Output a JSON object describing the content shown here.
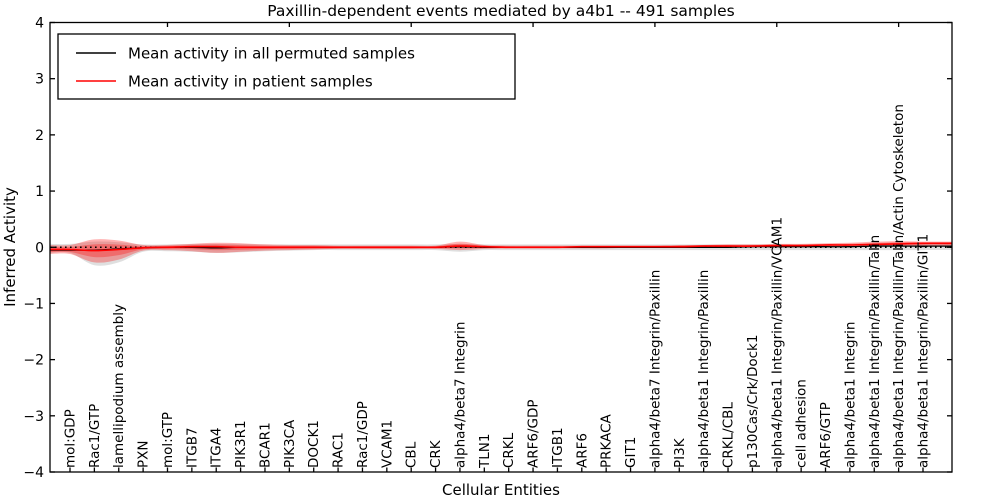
{
  "chart": {
    "title": "Paxillin-dependent events mediated by a4b1 -- 491 samples",
    "xlabel": "Cellular Entities",
    "ylabel": "Inferred Activity"
  },
  "legend": {
    "items": [
      {
        "label": "Mean activity in all permuted samples",
        "color": "#000000"
      },
      {
        "label": "Mean activity in patient samples",
        "color": "#ff0000"
      }
    ]
  },
  "chart_data": {
    "type": "line",
    "title": "Paxillin-dependent events mediated by a4b1 -- 491 samples",
    "xlabel": "Cellular Entities",
    "ylabel": "Inferred Activity",
    "ylim": [
      -4,
      4
    ],
    "yticks": [
      -4,
      -3,
      -2,
      -1,
      0,
      1,
      2,
      3,
      4
    ],
    "ytick_labels": [
      "−4",
      "−3",
      "−2",
      "−1",
      "0",
      "1",
      "2",
      "3",
      "4"
    ],
    "zero_line": {
      "y": 0,
      "style": "dotted",
      "color": "#000000"
    },
    "legend_position": "upper left",
    "grid": false,
    "categories": [
      "mol:GDP",
      "Rac1/GTP",
      "lamellipodium assembly",
      "PXN",
      "mol:GTP",
      "ITGB7",
      "ITGA4",
      "PIK3R1",
      "BCAR1",
      "PIK3CA",
      "DOCK1",
      "RAC1",
      "Rac1/GDP",
      "VCAM1",
      "CBL",
      "CRK",
      "alpha4/beta7 Integrin",
      "TLN1",
      "CRKL",
      "ARF6/GDP",
      "ITGB1",
      "ARF6",
      "PRKACA",
      "GIT1",
      "alpha4/beta7 Integrin/Paxillin",
      "PI3K",
      "alpha4/beta1 Integrin/Paxillin",
      "CRKL/CBL",
      "p130Cas/Crk/Dock1",
      "alpha4/beta1 Integrin/Paxillin/VCAM1",
      "cell adhesion",
      "ARF6/GTP",
      "alpha4/beta1 Integrin",
      "alpha4/beta1 Integrin/Paxillin/Talin",
      "alpha4/beta1 Integrin/Paxillin/Talin/Actin Cytoskeleton",
      "alpha4/beta1 Integrin/Paxillin/GIT1"
    ],
    "series": [
      {
        "name": "Mean activity in all permuted samples",
        "color": "#000000",
        "values": [
          -0.05,
          -0.05,
          -0.03,
          -0.01,
          0,
          0,
          -0.01,
          0,
          0,
          0,
          0,
          0,
          0,
          0,
          0,
          0,
          0.01,
          0,
          0,
          0,
          0,
          0,
          0,
          0,
          0,
          0,
          0,
          0,
          0.01,
          0.01,
          0.01,
          0.01,
          0.01,
          0.02,
          0.02,
          0.02
        ]
      },
      {
        "name": "Mean activity in patient samples",
        "color": "#ff0000",
        "values": [
          -0.04,
          -0.06,
          -0.04,
          -0.01,
          0,
          0.01,
          0.01,
          0,
          0,
          0,
          0,
          0,
          0,
          0,
          0,
          0,
          0.02,
          0.01,
          0,
          0,
          0,
          0.01,
          0.01,
          0.01,
          0.01,
          0.01,
          0.02,
          0.02,
          0.02,
          0.03,
          0.03,
          0.04,
          0.04,
          0.05,
          0.06,
          0.07
        ]
      }
    ],
    "bands": [
      {
        "name": "permuted-distribution-band",
        "color": "#808080",
        "opacity": 0.25,
        "upper": [
          0.06,
          0.1,
          0.09,
          0.05,
          0.05,
          0.06,
          0.06,
          0.06,
          0.05,
          0.05,
          0.05,
          0.05,
          0.05,
          0.05,
          0.05,
          0.05,
          0.06,
          0.05,
          0.05,
          0.05,
          0.05,
          0.05,
          0.05,
          0.05,
          0.05,
          0.05,
          0.05,
          0.05,
          0.05,
          0.05,
          0.05,
          0.05,
          0.05,
          0.06,
          0.06,
          0.06
        ],
        "lower": [
          -0.1,
          -0.32,
          -0.27,
          -0.08,
          -0.07,
          -0.08,
          -0.1,
          -0.09,
          -0.07,
          -0.06,
          -0.05,
          -0.05,
          -0.05,
          -0.05,
          -0.05,
          -0.05,
          -0.08,
          -0.05,
          -0.05,
          -0.05,
          -0.05,
          -0.05,
          -0.05,
          -0.05,
          -0.05,
          -0.05,
          -0.05,
          -0.05,
          -0.05,
          -0.05,
          -0.05,
          -0.05,
          -0.05,
          -0.05,
          -0.05,
          -0.05
        ]
      },
      {
        "name": "patient-distribution-band",
        "color": "#ff0000",
        "opacity": 0.3,
        "upper": [
          0.04,
          0.14,
          0.12,
          0.04,
          0.04,
          0.06,
          0.08,
          0.07,
          0.05,
          0.04,
          0.04,
          0.03,
          0.03,
          0.03,
          0.03,
          0.03,
          0.1,
          0.04,
          0.03,
          0.03,
          0.03,
          0.03,
          0.03,
          0.03,
          0.03,
          0.04,
          0.04,
          0.05,
          0.05,
          0.06,
          0.06,
          0.07,
          0.08,
          0.1,
          0.11,
          0.1
        ],
        "lower": [
          -0.12,
          -0.27,
          -0.22,
          -0.06,
          -0.05,
          -0.07,
          -0.1,
          -0.08,
          -0.06,
          -0.05,
          -0.04,
          -0.03,
          -0.03,
          -0.03,
          -0.03,
          -0.03,
          -0.05,
          -0.03,
          -0.02,
          -0.02,
          -0.02,
          -0.02,
          -0.02,
          -0.01,
          -0.01,
          -0.01,
          0,
          0,
          0,
          0.01,
          0.01,
          0.01,
          0.02,
          0.02,
          0.03,
          0.03
        ]
      }
    ]
  }
}
